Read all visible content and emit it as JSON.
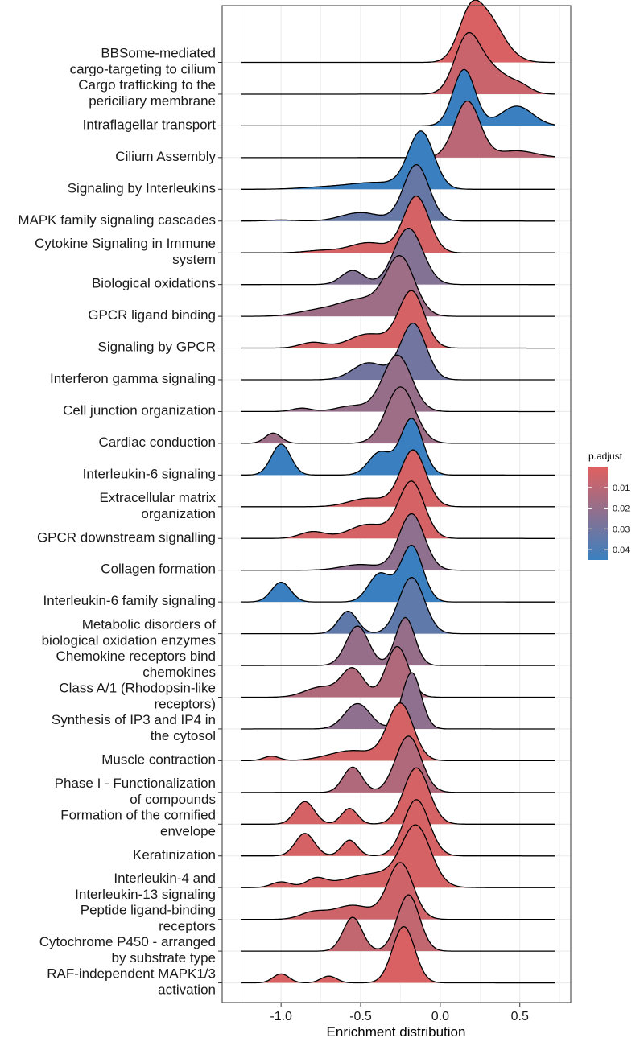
{
  "chart_data": {
    "type": "ridgeline",
    "xlabel": "Enrichment distribution",
    "xticks": [
      -1.0,
      -0.5,
      0.0,
      0.5
    ],
    "xtick_labels": [
      "-1.0",
      "-0.5",
      "0.0",
      "0.5"
    ],
    "xlim": [
      -1.37,
      0.82
    ],
    "x_range": [
      -1.25,
      0.72
    ],
    "grid": true,
    "legend": {
      "title": "p.adjust",
      "position": "right",
      "ticks": [
        0.01,
        0.02,
        0.03,
        0.04
      ],
      "tick_labels": [
        "0.01",
        "0.02",
        "0.03",
        "0.04"
      ],
      "range": [
        0.0,
        0.045
      ],
      "low_color": "#e0605f",
      "high_color": "#3a80c0"
    },
    "series": [
      {
        "label": [
          "BBSome-mediated",
          "cargo-targeting to cilium"
        ],
        "p_adjust": 0.002,
        "peaks": [
          {
            "mu": 0.2,
            "sd": 0.08,
            "h": 1.0
          },
          {
            "mu": 0.33,
            "sd": 0.07,
            "h": 0.45
          },
          {
            "mu": 0.42,
            "sd": 0.08,
            "h": 0.15
          }
        ]
      },
      {
        "label": [
          "Cargo trafficking to the",
          "periciliary membrane"
        ],
        "p_adjust": 0.006,
        "peaks": [
          {
            "mu": 0.17,
            "sd": 0.08,
            "h": 1.0
          },
          {
            "mu": 0.33,
            "sd": 0.09,
            "h": 0.4
          },
          {
            "mu": 0.5,
            "sd": 0.07,
            "h": 0.15
          }
        ]
      },
      {
        "label": [
          "Intraflagellar transport"
        ],
        "p_adjust": 0.045,
        "peaks": [
          {
            "mu": 0.15,
            "sd": 0.07,
            "h": 1.0
          },
          {
            "mu": 0.48,
            "sd": 0.1,
            "h": 0.35
          }
        ]
      },
      {
        "label": [
          "Cilium Assembly"
        ],
        "p_adjust": 0.01,
        "peaks": [
          {
            "mu": 0.17,
            "sd": 0.08,
            "h": 1.0
          },
          {
            "mu": 0.48,
            "sd": 0.12,
            "h": 0.12
          }
        ]
      },
      {
        "label": [
          "Signaling by Interleukins"
        ],
        "p_adjust": 0.045,
        "peaks": [
          {
            "mu": -0.12,
            "sd": 0.08,
            "h": 1.0
          },
          {
            "mu": -0.4,
            "sd": 0.18,
            "h": 0.12
          },
          {
            "mu": -0.75,
            "sd": 0.15,
            "h": 0.03
          }
        ]
      },
      {
        "label": [
          "MAPK family signaling cascades"
        ],
        "p_adjust": 0.033,
        "peaks": [
          {
            "mu": -0.15,
            "sd": 0.08,
            "h": 1.0
          },
          {
            "mu": -0.5,
            "sd": 0.12,
            "h": 0.15
          },
          {
            "mu": -1.0,
            "sd": 0.08,
            "h": 0.02
          }
        ]
      },
      {
        "label": [
          "Cytokine Signaling in Immune",
          "system"
        ],
        "p_adjust": 0.003,
        "peaks": [
          {
            "mu": -0.15,
            "sd": 0.08,
            "h": 1.0
          },
          {
            "mu": -0.45,
            "sd": 0.12,
            "h": 0.18
          },
          {
            "mu": -0.75,
            "sd": 0.1,
            "h": 0.04
          }
        ]
      },
      {
        "label": [
          "Biological oxidations"
        ],
        "p_adjust": 0.025,
        "peaks": [
          {
            "mu": -0.2,
            "sd": 0.09,
            "h": 1.0
          },
          {
            "mu": -0.55,
            "sd": 0.07,
            "h": 0.25
          }
        ]
      },
      {
        "label": [
          "GPCR ligand binding"
        ],
        "p_adjust": 0.018,
        "peaks": [
          {
            "mu": -0.25,
            "sd": 0.09,
            "h": 1.0
          },
          {
            "mu": -0.5,
            "sd": 0.15,
            "h": 0.3
          },
          {
            "mu": -0.8,
            "sd": 0.12,
            "h": 0.08
          }
        ]
      },
      {
        "label": [
          "Signaling by GPCR"
        ],
        "p_adjust": 0.003,
        "peaks": [
          {
            "mu": -0.18,
            "sd": 0.08,
            "h": 1.0
          },
          {
            "mu": -0.45,
            "sd": 0.12,
            "h": 0.25
          },
          {
            "mu": -0.8,
            "sd": 0.08,
            "h": 0.1
          }
        ]
      },
      {
        "label": [
          "Interferon gamma signaling"
        ],
        "p_adjust": 0.03,
        "peaks": [
          {
            "mu": -0.17,
            "sd": 0.08,
            "h": 1.0
          },
          {
            "mu": -0.45,
            "sd": 0.1,
            "h": 0.3
          }
        ]
      },
      {
        "label": [
          "Cell junction organization"
        ],
        "p_adjust": 0.02,
        "peaks": [
          {
            "mu": -0.27,
            "sd": 0.09,
            "h": 1.0
          },
          {
            "mu": -0.55,
            "sd": 0.1,
            "h": 0.1
          },
          {
            "mu": -0.87,
            "sd": 0.06,
            "h": 0.06
          }
        ]
      },
      {
        "label": [
          "Cardiac conduction"
        ],
        "p_adjust": 0.018,
        "peaks": [
          {
            "mu": -0.25,
            "sd": 0.09,
            "h": 1.0
          },
          {
            "mu": -1.05,
            "sd": 0.05,
            "h": 0.18
          }
        ]
      },
      {
        "label": [
          "Interleukin-6 signaling"
        ],
        "p_adjust": 0.045,
        "peaks": [
          {
            "mu": -0.18,
            "sd": 0.07,
            "h": 1.0
          },
          {
            "mu": -0.38,
            "sd": 0.07,
            "h": 0.4
          },
          {
            "mu": -1.0,
            "sd": 0.06,
            "h": 0.55
          }
        ]
      },
      {
        "label": [
          "Extracellular matrix",
          "organization"
        ],
        "p_adjust": 0.003,
        "peaks": [
          {
            "mu": -0.17,
            "sd": 0.08,
            "h": 1.0
          },
          {
            "mu": -0.45,
            "sd": 0.12,
            "h": 0.15
          }
        ]
      },
      {
        "label": [
          "GPCR downstream signalling"
        ],
        "p_adjust": 0.003,
        "peaks": [
          {
            "mu": -0.18,
            "sd": 0.08,
            "h": 1.0
          },
          {
            "mu": -0.45,
            "sd": 0.12,
            "h": 0.25
          },
          {
            "mu": -0.8,
            "sd": 0.08,
            "h": 0.12
          }
        ]
      },
      {
        "label": [
          "Collagen formation"
        ],
        "p_adjust": 0.022,
        "peaks": [
          {
            "mu": -0.18,
            "sd": 0.08,
            "h": 1.0
          },
          {
            "mu": -0.5,
            "sd": 0.12,
            "h": 0.1
          }
        ]
      },
      {
        "label": [
          "Interleukin-6 family signaling"
        ],
        "p_adjust": 0.045,
        "peaks": [
          {
            "mu": -0.18,
            "sd": 0.07,
            "h": 1.0
          },
          {
            "mu": -0.38,
            "sd": 0.07,
            "h": 0.5
          },
          {
            "mu": -1.0,
            "sd": 0.06,
            "h": 0.35
          }
        ]
      },
      {
        "label": [
          "Metabolic disorders of",
          "biological oxidation enzymes"
        ],
        "p_adjust": 0.035,
        "peaks": [
          {
            "mu": -0.18,
            "sd": 0.08,
            "h": 1.0
          },
          {
            "mu": -0.58,
            "sd": 0.06,
            "h": 0.4
          }
        ]
      },
      {
        "label": [
          "Chemokine receptors bind",
          "chemokines"
        ],
        "p_adjust": 0.02,
        "peaks": [
          {
            "mu": -0.22,
            "sd": 0.06,
            "h": 0.85
          },
          {
            "mu": -0.52,
            "sd": 0.07,
            "h": 0.7
          }
        ]
      },
      {
        "label": [
          "Class A/1 (Rhodopsin-like",
          "receptors)"
        ],
        "p_adjust": 0.013,
        "peaks": [
          {
            "mu": -0.27,
            "sd": 0.07,
            "h": 0.9
          },
          {
            "mu": -0.55,
            "sd": 0.07,
            "h": 0.5
          },
          {
            "mu": -0.75,
            "sd": 0.1,
            "h": 0.18
          }
        ]
      },
      {
        "label": [
          "Synthesis of IP3 and IP4 in",
          "the cytosol"
        ],
        "p_adjust": 0.022,
        "peaks": [
          {
            "mu": -0.18,
            "sd": 0.06,
            "h": 1.0
          },
          {
            "mu": -0.52,
            "sd": 0.08,
            "h": 0.45
          }
        ]
      },
      {
        "label": [
          "Muscle contraction"
        ],
        "p_adjust": 0.003,
        "peaks": [
          {
            "mu": -0.25,
            "sd": 0.08,
            "h": 1.0
          },
          {
            "mu": -0.55,
            "sd": 0.15,
            "h": 0.18
          },
          {
            "mu": -1.06,
            "sd": 0.05,
            "h": 0.08
          }
        ]
      },
      {
        "label": [
          "Phase I - Functionalization",
          "of compounds"
        ],
        "p_adjust": 0.013,
        "peaks": [
          {
            "mu": -0.2,
            "sd": 0.08,
            "h": 1.0
          },
          {
            "mu": -0.55,
            "sd": 0.06,
            "h": 0.45
          }
        ]
      },
      {
        "label": [
          "Formation of the cornified",
          "envelope"
        ],
        "p_adjust": 0.003,
        "peaks": [
          {
            "mu": -0.15,
            "sd": 0.08,
            "h": 1.0
          },
          {
            "mu": -0.85,
            "sd": 0.06,
            "h": 0.4
          },
          {
            "mu": -0.57,
            "sd": 0.05,
            "h": 0.28
          }
        ]
      },
      {
        "label": [
          "Keratinization"
        ],
        "p_adjust": 0.003,
        "peaks": [
          {
            "mu": -0.15,
            "sd": 0.08,
            "h": 1.0
          },
          {
            "mu": -0.85,
            "sd": 0.06,
            "h": 0.4
          },
          {
            "mu": -0.57,
            "sd": 0.05,
            "h": 0.28
          }
        ]
      },
      {
        "label": [
          "Interleukin-4 and",
          "Interleukin-13 signaling"
        ],
        "p_adjust": 0.003,
        "peaks": [
          {
            "mu": -0.15,
            "sd": 0.09,
            "h": 1.0
          },
          {
            "mu": -0.4,
            "sd": 0.2,
            "h": 0.25
          },
          {
            "mu": -0.78,
            "sd": 0.06,
            "h": 0.14
          },
          {
            "mu": -1.0,
            "sd": 0.06,
            "h": 0.1
          }
        ]
      },
      {
        "label": [
          "Peptide ligand-binding",
          "receptors"
        ],
        "p_adjust": 0.005,
        "peaks": [
          {
            "mu": -0.25,
            "sd": 0.08,
            "h": 1.0
          },
          {
            "mu": -0.55,
            "sd": 0.12,
            "h": 0.25
          },
          {
            "mu": -0.8,
            "sd": 0.08,
            "h": 0.12
          }
        ]
      },
      {
        "label": [
          "Cytochrome P450 - arranged",
          "by substrate type"
        ],
        "p_adjust": 0.008,
        "peaks": [
          {
            "mu": -0.2,
            "sd": 0.07,
            "h": 1.0
          },
          {
            "mu": -0.55,
            "sd": 0.06,
            "h": 0.6
          }
        ]
      },
      {
        "label": [
          "RAF-independent MAPK1/3",
          "activation"
        ],
        "p_adjust": 0.002,
        "peaks": [
          {
            "mu": -0.23,
            "sd": 0.07,
            "h": 1.0
          },
          {
            "mu": -1.0,
            "sd": 0.05,
            "h": 0.16
          },
          {
            "mu": -0.7,
            "sd": 0.05,
            "h": 0.12
          }
        ]
      }
    ]
  }
}
